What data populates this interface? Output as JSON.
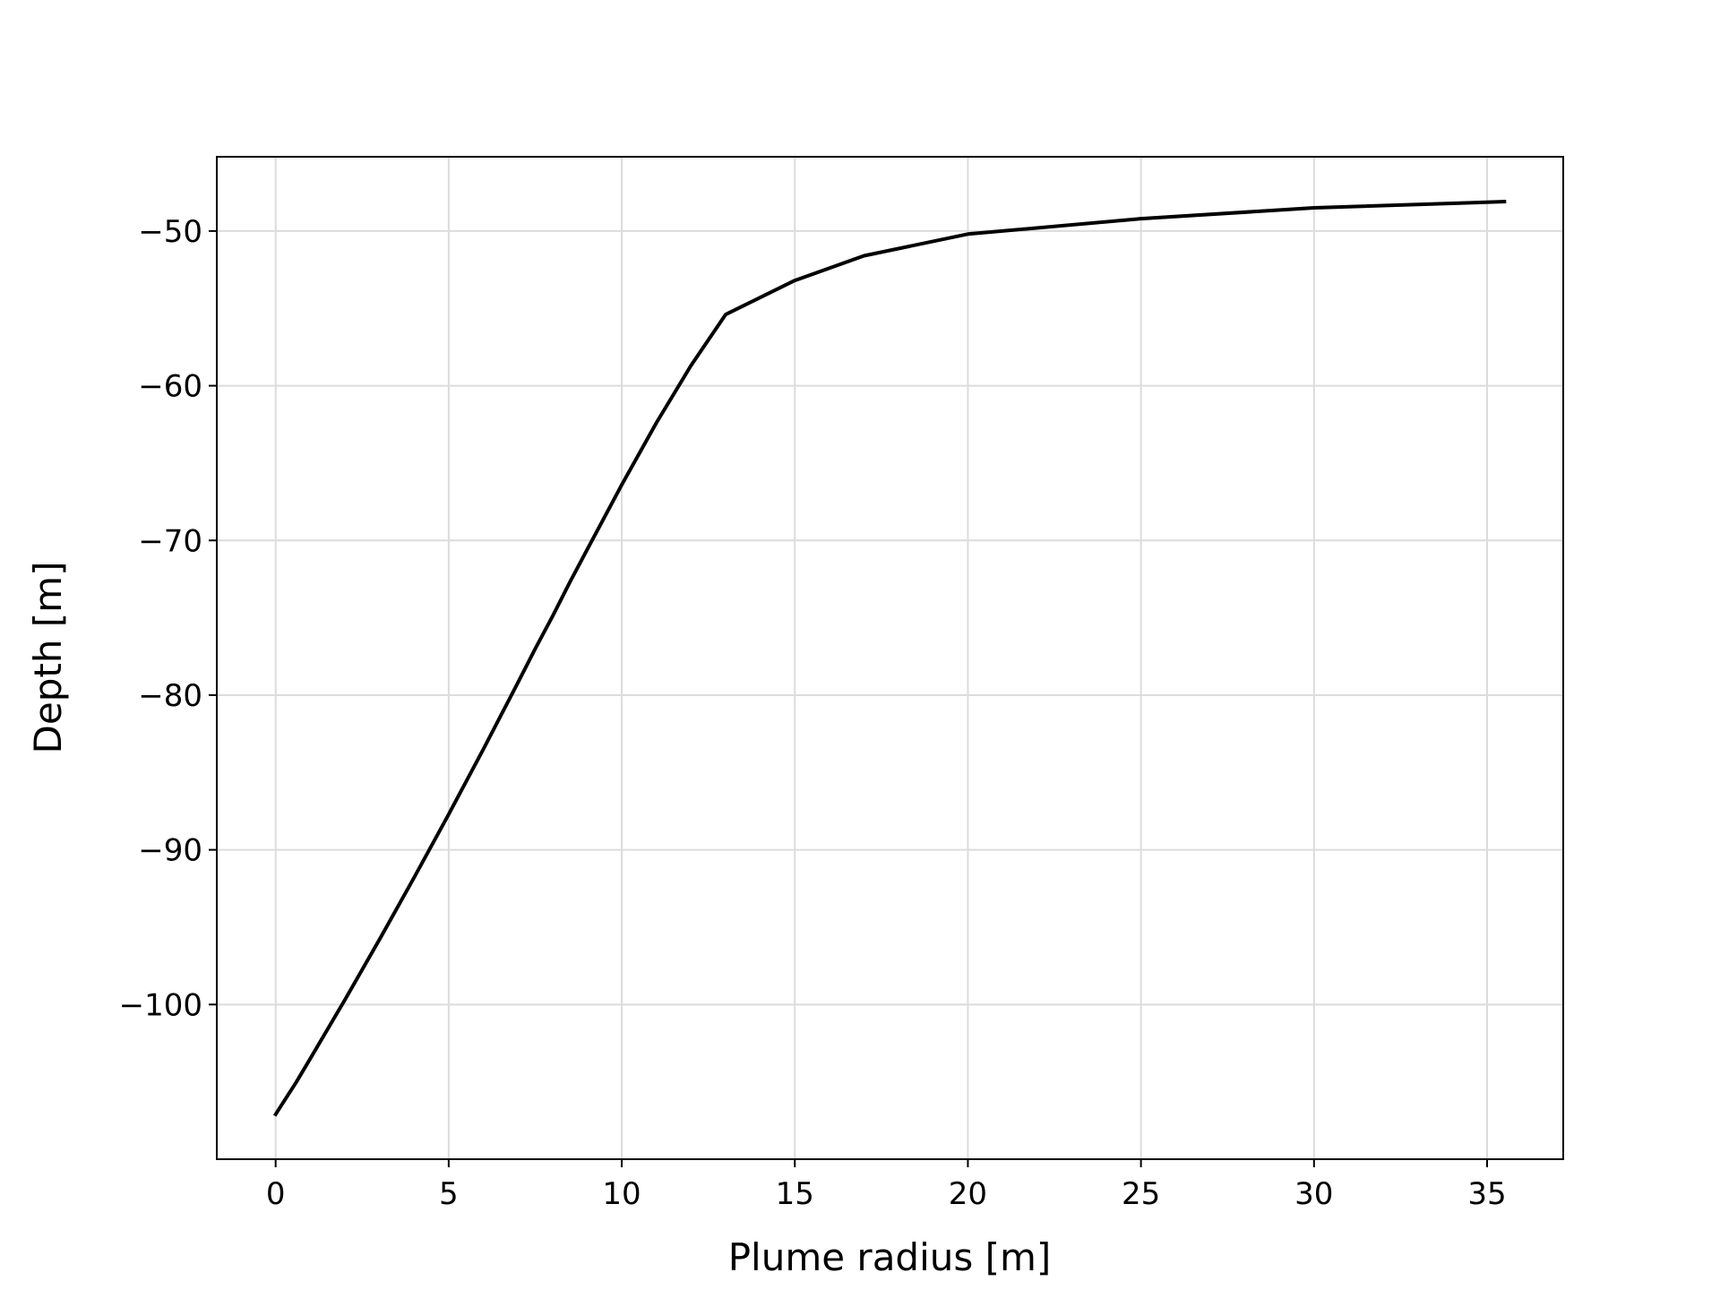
{
  "chart_data": {
    "type": "line",
    "title": "",
    "xlabel": "Plume radius [m]",
    "ylabel": "Depth [m]",
    "xlim": [
      -1.7,
      37.2
    ],
    "ylim": [
      -110,
      -45.2
    ],
    "grid": true,
    "x_ticks": [
      {
        "value": 0,
        "label": "0"
      },
      {
        "value": 5,
        "label": "5"
      },
      {
        "value": 10,
        "label": "10"
      },
      {
        "value": 15,
        "label": "15"
      },
      {
        "value": 20,
        "label": "20"
      },
      {
        "value": 25,
        "label": "25"
      },
      {
        "value": 30,
        "label": "30"
      },
      {
        "value": 35,
        "label": "35"
      }
    ],
    "y_ticks": [
      {
        "value": -50,
        "label": "−50"
      },
      {
        "value": -60,
        "label": "−60"
      },
      {
        "value": -70,
        "label": "−70"
      },
      {
        "value": -80,
        "label": "−80"
      },
      {
        "value": -90,
        "label": "−90"
      },
      {
        "value": -100,
        "label": "−100"
      }
    ],
    "series": [
      {
        "color": "#000000",
        "x": [
          0.0,
          0.2,
          0.6,
          1.0,
          2.0,
          3.0,
          4.0,
          5.0,
          6.0,
          7.0,
          7.5,
          8.0,
          8.5,
          9.0,
          9.5,
          10.0,
          11.0,
          12.0,
          13.0,
          15.0,
          17.0,
          20.0,
          25.0,
          30.0,
          35.5
        ],
        "y": [
          -107.1,
          -106.4,
          -105.0,
          -103.5,
          -99.7,
          -95.8,
          -91.8,
          -87.7,
          -83.5,
          -79.2,
          -77.0,
          -74.9,
          -72.7,
          -70.6,
          -68.5,
          -66.4,
          -62.4,
          -58.7,
          -55.4,
          -53.2,
          -51.6,
          -50.2,
          -49.2,
          -48.5,
          -48.1
        ]
      }
    ],
    "colors": {
      "line": "#000000",
      "grid": "#dcdcdc",
      "frame": "#000000"
    }
  }
}
